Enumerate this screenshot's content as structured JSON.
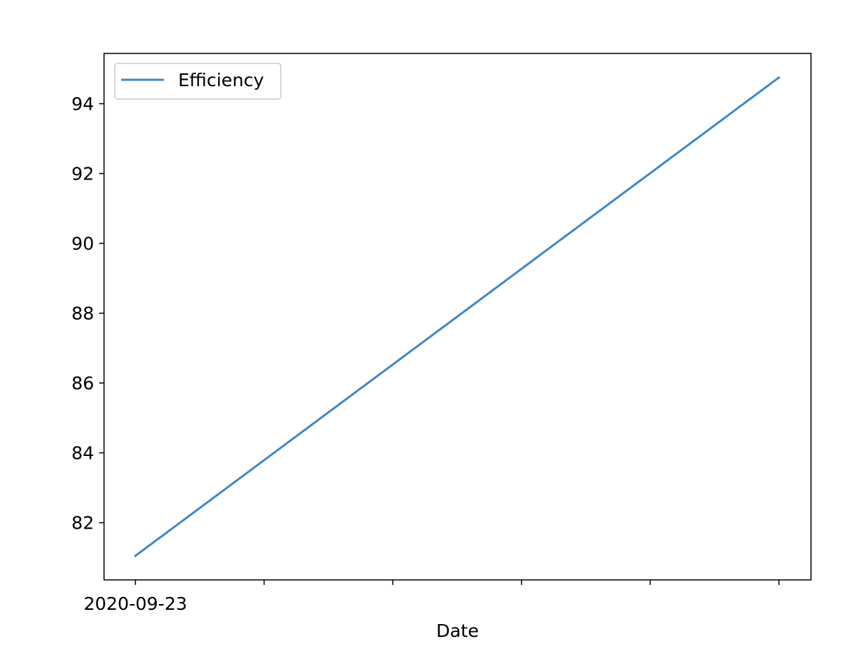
{
  "chart_data": {
    "type": "line",
    "title": "",
    "xlabel": "Date",
    "ylabel": "",
    "x": [
      "2020-09-23",
      "",
      "",
      "",
      "",
      ""
    ],
    "x_tick_labels": [
      "2020-09-23",
      "",
      "",
      "",
      "",
      ""
    ],
    "series": [
      {
        "name": "Efficiency",
        "color": "#3f88c5",
        "points": [
          {
            "x_index": 0,
            "y": 81.05
          },
          {
            "x_index": 5,
            "y": 94.75
          }
        ]
      }
    ],
    "ylim": [
      80.36,
      95.44
    ],
    "yticks": [
      82,
      84,
      86,
      88,
      90,
      92,
      94
    ],
    "grid": false,
    "legend_position": "upper-left"
  }
}
